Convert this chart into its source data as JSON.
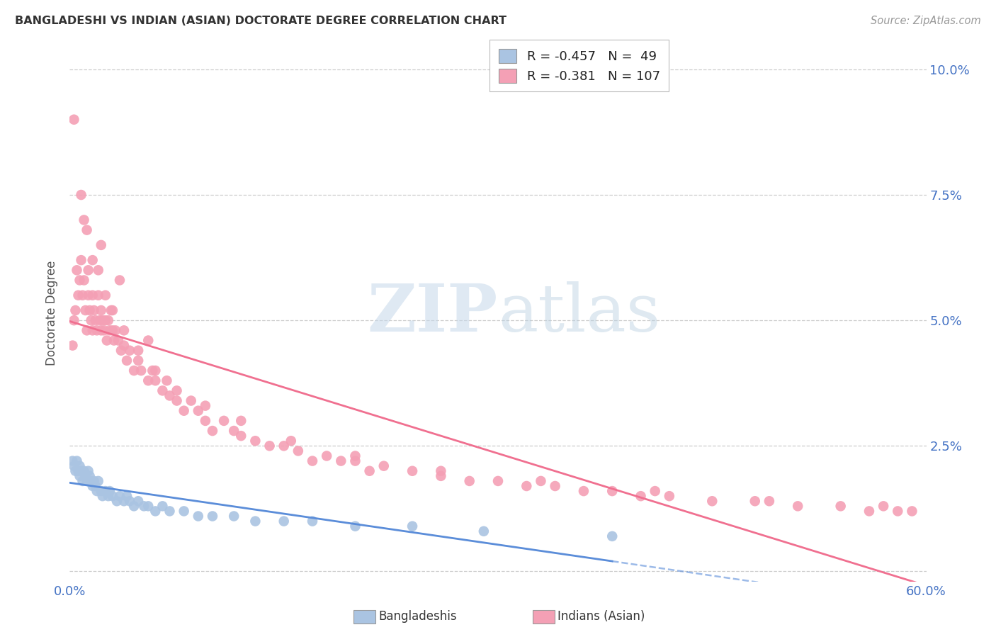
{
  "title": "BANGLADESHI VS INDIAN (ASIAN) DOCTORATE DEGREE CORRELATION CHART",
  "source": "Source: ZipAtlas.com",
  "ylabel": "Doctorate Degree",
  "xlim": [
    0.0,
    0.6
  ],
  "ylim": [
    -0.002,
    0.105
  ],
  "yticks": [
    0.0,
    0.025,
    0.05,
    0.075,
    0.1
  ],
  "ytick_labels": [
    "",
    "2.5%",
    "5.0%",
    "7.5%",
    "10.0%"
  ],
  "xticks": [
    0.0,
    0.12,
    0.24,
    0.36,
    0.48,
    0.6
  ],
  "xtick_labels": [
    "0.0%",
    "",
    "",
    "",
    "",
    "60.0%"
  ],
  "bangladeshi_color": "#aac4e2",
  "indian_color": "#f4a0b5",
  "trendline_bangladeshi_color": "#5b8dd9",
  "trendline_indian_color": "#f07090",
  "background_color": "#ffffff",
  "grid_color": "#cccccc",
  "ban_x": [
    0.002,
    0.003,
    0.004,
    0.005,
    0.006,
    0.007,
    0.007,
    0.008,
    0.009,
    0.01,
    0.011,
    0.012,
    0.013,
    0.014,
    0.015,
    0.016,
    0.017,
    0.018,
    0.019,
    0.02,
    0.022,
    0.023,
    0.025,
    0.027,
    0.028,
    0.03,
    0.033,
    0.035,
    0.038,
    0.04,
    0.042,
    0.045,
    0.048,
    0.052,
    0.055,
    0.06,
    0.065,
    0.07,
    0.08,
    0.09,
    0.1,
    0.115,
    0.13,
    0.15,
    0.17,
    0.2,
    0.24,
    0.29,
    0.38
  ],
  "ban_y": [
    0.022,
    0.021,
    0.02,
    0.022,
    0.02,
    0.019,
    0.021,
    0.02,
    0.018,
    0.02,
    0.019,
    0.018,
    0.02,
    0.019,
    0.018,
    0.017,
    0.018,
    0.017,
    0.016,
    0.018,
    0.016,
    0.015,
    0.016,
    0.015,
    0.016,
    0.015,
    0.014,
    0.015,
    0.014,
    0.015,
    0.014,
    0.013,
    0.014,
    0.013,
    0.013,
    0.012,
    0.013,
    0.012,
    0.012,
    0.011,
    0.011,
    0.011,
    0.01,
    0.01,
    0.01,
    0.009,
    0.009,
    0.008,
    0.007
  ],
  "ind_x": [
    0.002,
    0.003,
    0.004,
    0.005,
    0.006,
    0.007,
    0.008,
    0.009,
    0.01,
    0.011,
    0.012,
    0.013,
    0.013,
    0.014,
    0.015,
    0.016,
    0.016,
    0.017,
    0.018,
    0.019,
    0.02,
    0.021,
    0.022,
    0.022,
    0.023,
    0.024,
    0.025,
    0.026,
    0.027,
    0.028,
    0.029,
    0.03,
    0.031,
    0.032,
    0.034,
    0.036,
    0.038,
    0.04,
    0.042,
    0.045,
    0.048,
    0.05,
    0.055,
    0.058,
    0.06,
    0.065,
    0.068,
    0.07,
    0.075,
    0.08,
    0.085,
    0.09,
    0.095,
    0.1,
    0.108,
    0.115,
    0.12,
    0.13,
    0.14,
    0.15,
    0.16,
    0.17,
    0.18,
    0.19,
    0.2,
    0.21,
    0.22,
    0.24,
    0.26,
    0.28,
    0.3,
    0.32,
    0.34,
    0.36,
    0.38,
    0.4,
    0.42,
    0.45,
    0.48,
    0.51,
    0.54,
    0.56,
    0.58,
    0.59,
    0.003,
    0.008,
    0.012,
    0.016,
    0.02,
    0.025,
    0.03,
    0.038,
    0.048,
    0.06,
    0.075,
    0.095,
    0.12,
    0.155,
    0.2,
    0.26,
    0.33,
    0.41,
    0.49,
    0.57,
    0.01,
    0.022,
    0.035,
    0.055
  ],
  "ind_y": [
    0.045,
    0.05,
    0.052,
    0.06,
    0.055,
    0.058,
    0.062,
    0.055,
    0.058,
    0.052,
    0.048,
    0.055,
    0.06,
    0.052,
    0.05,
    0.048,
    0.055,
    0.052,
    0.05,
    0.048,
    0.055,
    0.05,
    0.048,
    0.052,
    0.05,
    0.048,
    0.05,
    0.046,
    0.05,
    0.048,
    0.052,
    0.048,
    0.046,
    0.048,
    0.046,
    0.044,
    0.045,
    0.042,
    0.044,
    0.04,
    0.042,
    0.04,
    0.038,
    0.04,
    0.038,
    0.036,
    0.038,
    0.035,
    0.034,
    0.032,
    0.034,
    0.032,
    0.03,
    0.028,
    0.03,
    0.028,
    0.027,
    0.026,
    0.025,
    0.025,
    0.024,
    0.022,
    0.023,
    0.022,
    0.022,
    0.02,
    0.021,
    0.02,
    0.019,
    0.018,
    0.018,
    0.017,
    0.017,
    0.016,
    0.016,
    0.015,
    0.015,
    0.014,
    0.014,
    0.013,
    0.013,
    0.012,
    0.012,
    0.012,
    0.09,
    0.075,
    0.068,
    0.062,
    0.06,
    0.055,
    0.052,
    0.048,
    0.044,
    0.04,
    0.036,
    0.033,
    0.03,
    0.026,
    0.023,
    0.02,
    0.018,
    0.016,
    0.014,
    0.013,
    0.07,
    0.065,
    0.058,
    0.046
  ]
}
